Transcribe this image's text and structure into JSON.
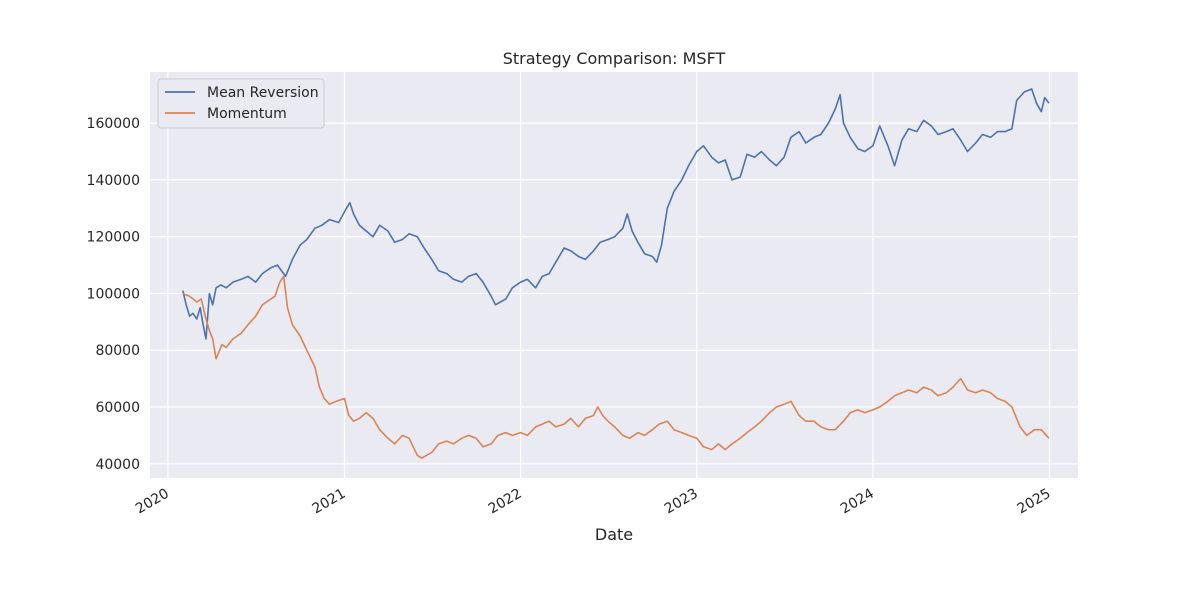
{
  "chart_data": {
    "type": "line",
    "title": "Strategy Comparison: MSFT",
    "xlabel": "Date",
    "ylabel": "",
    "x_ticks": [
      "2020",
      "2021",
      "2022",
      "2023",
      "2024",
      "2025"
    ],
    "y_ticks": [
      "40000",
      "60000",
      "80000",
      "100000",
      "120000",
      "140000",
      "160000"
    ],
    "xlim": [
      "2019-11-25",
      "2025-03-01"
    ],
    "ylim": [
      35000,
      178000
    ],
    "grid": true,
    "legend_position": "top-left",
    "series": [
      {
        "name": "Mean Reversion",
        "color": "#4c72b0",
        "points": [
          [
            "2020-02-01",
            101000
          ],
          [
            "2020-02-08",
            96000
          ],
          [
            "2020-02-15",
            92000
          ],
          [
            "2020-02-22",
            93000
          ],
          [
            "2020-03-01",
            91000
          ],
          [
            "2020-03-08",
            95000
          ],
          [
            "2020-03-14",
            89000
          ],
          [
            "2020-03-20",
            84000
          ],
          [
            "2020-03-27",
            100000
          ],
          [
            "2020-04-03",
            96000
          ],
          [
            "2020-04-10",
            102000
          ],
          [
            "2020-04-20",
            103000
          ],
          [
            "2020-05-01",
            102000
          ],
          [
            "2020-05-15",
            104000
          ],
          [
            "2020-06-01",
            105000
          ],
          [
            "2020-06-15",
            106000
          ],
          [
            "2020-07-01",
            104000
          ],
          [
            "2020-07-15",
            107000
          ],
          [
            "2020-08-01",
            109000
          ],
          [
            "2020-08-15",
            110000
          ],
          [
            "2020-09-01",
            106000
          ],
          [
            "2020-09-15",
            112000
          ],
          [
            "2020-10-01",
            117000
          ],
          [
            "2020-10-15",
            119000
          ],
          [
            "2020-11-01",
            123000
          ],
          [
            "2020-11-15",
            124000
          ],
          [
            "2020-12-01",
            126000
          ],
          [
            "2020-12-20",
            125000
          ],
          [
            "2021-01-05",
            130000
          ],
          [
            "2021-01-12",
            132000
          ],
          [
            "2021-01-20",
            128000
          ],
          [
            "2021-02-01",
            124000
          ],
          [
            "2021-02-15",
            122000
          ],
          [
            "2021-03-01",
            120000
          ],
          [
            "2021-03-15",
            124000
          ],
          [
            "2021-04-01",
            122000
          ],
          [
            "2021-04-15",
            118000
          ],
          [
            "2021-05-01",
            119000
          ],
          [
            "2021-05-15",
            121000
          ],
          [
            "2021-06-01",
            120000
          ],
          [
            "2021-06-15",
            116000
          ],
          [
            "2021-07-01",
            112000
          ],
          [
            "2021-07-15",
            108000
          ],
          [
            "2021-08-01",
            107000
          ],
          [
            "2021-08-15",
            105000
          ],
          [
            "2021-09-01",
            104000
          ],
          [
            "2021-09-15",
            106000
          ],
          [
            "2021-10-01",
            107000
          ],
          [
            "2021-10-15",
            104000
          ],
          [
            "2021-11-01",
            99000
          ],
          [
            "2021-11-10",
            96000
          ],
          [
            "2021-11-20",
            97000
          ],
          [
            "2021-12-01",
            98000
          ],
          [
            "2021-12-15",
            102000
          ],
          [
            "2022-01-01",
            104000
          ],
          [
            "2022-01-15",
            105000
          ],
          [
            "2022-02-01",
            102000
          ],
          [
            "2022-02-15",
            106000
          ],
          [
            "2022-03-01",
            107000
          ],
          [
            "2022-03-15",
            111000
          ],
          [
            "2022-04-01",
            116000
          ],
          [
            "2022-04-15",
            115000
          ],
          [
            "2022-05-01",
            113000
          ],
          [
            "2022-05-15",
            112000
          ],
          [
            "2022-06-01",
            115000
          ],
          [
            "2022-06-15",
            118000
          ],
          [
            "2022-07-01",
            119000
          ],
          [
            "2022-07-15",
            120000
          ],
          [
            "2022-08-01",
            123000
          ],
          [
            "2022-08-10",
            128000
          ],
          [
            "2022-08-20",
            122000
          ],
          [
            "2022-09-01",
            118000
          ],
          [
            "2022-09-15",
            114000
          ],
          [
            "2022-10-01",
            113000
          ],
          [
            "2022-10-10",
            111000
          ],
          [
            "2022-10-20",
            117000
          ],
          [
            "2022-11-01",
            130000
          ],
          [
            "2022-11-15",
            136000
          ],
          [
            "2022-12-01",
            140000
          ],
          [
            "2022-12-15",
            145000
          ],
          [
            "2023-01-01",
            150000
          ],
          [
            "2023-01-15",
            152000
          ],
          [
            "2023-02-01",
            148000
          ],
          [
            "2023-02-15",
            146000
          ],
          [
            "2023-03-01",
            147000
          ],
          [
            "2023-03-15",
            140000
          ],
          [
            "2023-04-01",
            141000
          ],
          [
            "2023-04-15",
            149000
          ],
          [
            "2023-05-01",
            148000
          ],
          [
            "2023-05-15",
            150000
          ],
          [
            "2023-06-01",
            147000
          ],
          [
            "2023-06-15",
            145000
          ],
          [
            "2023-07-01",
            148000
          ],
          [
            "2023-07-15",
            155000
          ],
          [
            "2023-08-01",
            157000
          ],
          [
            "2023-08-15",
            153000
          ],
          [
            "2023-09-01",
            155000
          ],
          [
            "2023-09-15",
            156000
          ],
          [
            "2023-10-01",
            160000
          ],
          [
            "2023-10-15",
            165000
          ],
          [
            "2023-10-25",
            170000
          ],
          [
            "2023-11-01",
            160000
          ],
          [
            "2023-11-15",
            155000
          ],
          [
            "2023-12-01",
            151000
          ],
          [
            "2023-12-15",
            150000
          ],
          [
            "2024-01-01",
            152000
          ],
          [
            "2024-01-15",
            159000
          ],
          [
            "2024-02-01",
            152000
          ],
          [
            "2024-02-15",
            145000
          ],
          [
            "2024-03-01",
            154000
          ],
          [
            "2024-03-15",
            158000
          ],
          [
            "2024-04-01",
            157000
          ],
          [
            "2024-04-15",
            161000
          ],
          [
            "2024-05-01",
            159000
          ],
          [
            "2024-05-15",
            156000
          ],
          [
            "2024-06-01",
            157000
          ],
          [
            "2024-06-15",
            158000
          ],
          [
            "2024-07-01",
            154000
          ],
          [
            "2024-07-15",
            150000
          ],
          [
            "2024-08-01",
            153000
          ],
          [
            "2024-08-15",
            156000
          ],
          [
            "2024-09-01",
            155000
          ],
          [
            "2024-09-15",
            157000
          ],
          [
            "2024-10-01",
            157000
          ],
          [
            "2024-10-15",
            158000
          ],
          [
            "2024-10-25",
            168000
          ],
          [
            "2024-11-10",
            171000
          ],
          [
            "2024-11-25",
            172000
          ],
          [
            "2024-12-05",
            167000
          ],
          [
            "2024-12-15",
            164000
          ],
          [
            "2024-12-22",
            169000
          ],
          [
            "2024-12-31",
            167000
          ]
        ]
      },
      {
        "name": "Momentum",
        "color": "#dd8452",
        "points": [
          [
            "2020-02-01",
            100000
          ],
          [
            "2020-02-15",
            99000
          ],
          [
            "2020-03-01",
            97000
          ],
          [
            "2020-03-10",
            98000
          ],
          [
            "2020-03-20",
            91000
          ],
          [
            "2020-03-27",
            87000
          ],
          [
            "2020-04-03",
            84000
          ],
          [
            "2020-04-10",
            77000
          ],
          [
            "2020-04-15",
            79000
          ],
          [
            "2020-04-22",
            82000
          ],
          [
            "2020-05-01",
            81000
          ],
          [
            "2020-05-15",
            84000
          ],
          [
            "2020-06-01",
            86000
          ],
          [
            "2020-06-15",
            89000
          ],
          [
            "2020-07-01",
            92000
          ],
          [
            "2020-07-15",
            96000
          ],
          [
            "2020-08-01",
            98000
          ],
          [
            "2020-08-10",
            99000
          ],
          [
            "2020-08-20",
            104000
          ],
          [
            "2020-08-28",
            106000
          ],
          [
            "2020-09-05",
            95000
          ],
          [
            "2020-09-15",
            89000
          ],
          [
            "2020-10-01",
            85000
          ],
          [
            "2020-10-15",
            80000
          ],
          [
            "2020-11-01",
            74000
          ],
          [
            "2020-11-10",
            67000
          ],
          [
            "2020-11-20",
            63000
          ],
          [
            "2020-12-01",
            61000
          ],
          [
            "2020-12-15",
            62000
          ],
          [
            "2021-01-01",
            63000
          ],
          [
            "2021-01-10",
            57000
          ],
          [
            "2021-01-20",
            55000
          ],
          [
            "2021-02-01",
            56000
          ],
          [
            "2021-02-15",
            58000
          ],
          [
            "2021-03-01",
            56000
          ],
          [
            "2021-03-15",
            52000
          ],
          [
            "2021-04-01",
            49000
          ],
          [
            "2021-04-15",
            47000
          ],
          [
            "2021-05-01",
            50000
          ],
          [
            "2021-05-15",
            49000
          ],
          [
            "2021-06-01",
            43000
          ],
          [
            "2021-06-10",
            42000
          ],
          [
            "2021-07-01",
            44000
          ],
          [
            "2021-07-15",
            47000
          ],
          [
            "2021-08-01",
            48000
          ],
          [
            "2021-08-15",
            47000
          ],
          [
            "2021-09-01",
            49000
          ],
          [
            "2021-09-15",
            50000
          ],
          [
            "2021-10-01",
            49000
          ],
          [
            "2021-10-15",
            46000
          ],
          [
            "2021-11-01",
            47000
          ],
          [
            "2021-11-15",
            50000
          ],
          [
            "2021-12-01",
            51000
          ],
          [
            "2021-12-15",
            50000
          ],
          [
            "2022-01-01",
            51000
          ],
          [
            "2022-01-15",
            50000
          ],
          [
            "2022-02-01",
            53000
          ],
          [
            "2022-02-15",
            54000
          ],
          [
            "2022-03-01",
            55000
          ],
          [
            "2022-03-15",
            53000
          ],
          [
            "2022-04-01",
            54000
          ],
          [
            "2022-04-15",
            56000
          ],
          [
            "2022-05-01",
            53000
          ],
          [
            "2022-05-15",
            56000
          ],
          [
            "2022-06-01",
            57000
          ],
          [
            "2022-06-10",
            60000
          ],
          [
            "2022-06-20",
            57000
          ],
          [
            "2022-07-01",
            55000
          ],
          [
            "2022-07-15",
            53000
          ],
          [
            "2022-08-01",
            50000
          ],
          [
            "2022-08-15",
            49000
          ],
          [
            "2022-09-01",
            51000
          ],
          [
            "2022-09-15",
            50000
          ],
          [
            "2022-10-01",
            52000
          ],
          [
            "2022-10-15",
            54000
          ],
          [
            "2022-11-01",
            55000
          ],
          [
            "2022-11-15",
            52000
          ],
          [
            "2022-12-01",
            51000
          ],
          [
            "2022-12-15",
            50000
          ],
          [
            "2023-01-01",
            49000
          ],
          [
            "2023-01-15",
            46000
          ],
          [
            "2023-02-01",
            45000
          ],
          [
            "2023-02-15",
            47000
          ],
          [
            "2023-03-01",
            45000
          ],
          [
            "2023-03-15",
            47000
          ],
          [
            "2023-04-01",
            49000
          ],
          [
            "2023-04-15",
            51000
          ],
          [
            "2023-05-01",
            53000
          ],
          [
            "2023-05-15",
            55000
          ],
          [
            "2023-06-01",
            58000
          ],
          [
            "2023-06-15",
            60000
          ],
          [
            "2023-07-01",
            61000
          ],
          [
            "2023-07-15",
            62000
          ],
          [
            "2023-08-01",
            57000
          ],
          [
            "2023-08-15",
            55000
          ],
          [
            "2023-09-01",
            55000
          ],
          [
            "2023-09-15",
            53000
          ],
          [
            "2023-10-01",
            52000
          ],
          [
            "2023-10-15",
            52000
          ],
          [
            "2023-11-01",
            55000
          ],
          [
            "2023-11-15",
            58000
          ],
          [
            "2023-12-01",
            59000
          ],
          [
            "2023-12-15",
            58000
          ],
          [
            "2024-01-01",
            59000
          ],
          [
            "2024-01-15",
            60000
          ],
          [
            "2024-02-01",
            62000
          ],
          [
            "2024-02-15",
            64000
          ],
          [
            "2024-03-01",
            65000
          ],
          [
            "2024-03-15",
            66000
          ],
          [
            "2024-04-01",
            65000
          ],
          [
            "2024-04-15",
            67000
          ],
          [
            "2024-05-01",
            66000
          ],
          [
            "2024-05-15",
            64000
          ],
          [
            "2024-06-01",
            65000
          ],
          [
            "2024-06-15",
            67000
          ],
          [
            "2024-07-01",
            70000
          ],
          [
            "2024-07-15",
            66000
          ],
          [
            "2024-08-01",
            65000
          ],
          [
            "2024-08-15",
            66000
          ],
          [
            "2024-09-01",
            65000
          ],
          [
            "2024-09-15",
            63000
          ],
          [
            "2024-10-01",
            62000
          ],
          [
            "2024-10-15",
            60000
          ],
          [
            "2024-11-01",
            53000
          ],
          [
            "2024-11-15",
            50000
          ],
          [
            "2024-12-01",
            52000
          ],
          [
            "2024-12-15",
            52000
          ],
          [
            "2024-12-31",
            49000
          ]
        ]
      }
    ]
  }
}
